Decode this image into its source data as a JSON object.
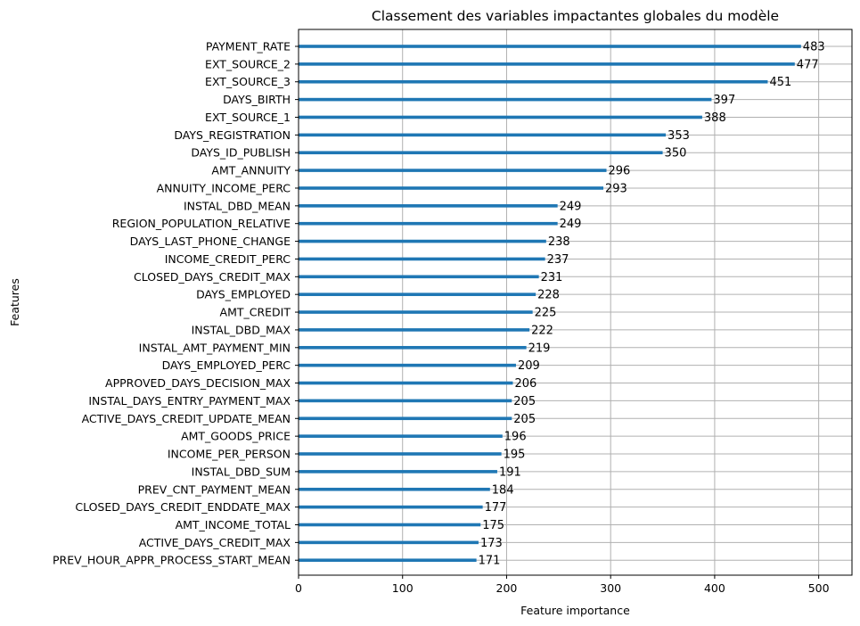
{
  "chart_data": {
    "type": "bar",
    "orientation": "horizontal",
    "title": "Classement des variables impactantes globales du modèle",
    "xlabel": "Feature importance",
    "ylabel": "Features",
    "xlim": [
      0,
      532
    ],
    "xticks": [
      0,
      100,
      200,
      300,
      400,
      500
    ],
    "grid": true,
    "bar_color": "#1f77b4",
    "categories": [
      "PAYMENT_RATE",
      "EXT_SOURCE_2",
      "EXT_SOURCE_3",
      "DAYS_BIRTH",
      "EXT_SOURCE_1",
      "DAYS_REGISTRATION",
      "DAYS_ID_PUBLISH",
      "AMT_ANNUITY",
      "ANNUITY_INCOME_PERC",
      "INSTAL_DBD_MEAN",
      "REGION_POPULATION_RELATIVE",
      "DAYS_LAST_PHONE_CHANGE",
      "INCOME_CREDIT_PERC",
      "CLOSED_DAYS_CREDIT_MAX",
      "DAYS_EMPLOYED",
      "AMT_CREDIT",
      "INSTAL_DBD_MAX",
      "INSTAL_AMT_PAYMENT_MIN",
      "DAYS_EMPLOYED_PERC",
      "APPROVED_DAYS_DECISION_MAX",
      "INSTAL_DAYS_ENTRY_PAYMENT_MAX",
      "ACTIVE_DAYS_CREDIT_UPDATE_MEAN",
      "AMT_GOODS_PRICE",
      "INCOME_PER_PERSON",
      "INSTAL_DBD_SUM",
      "PREV_CNT_PAYMENT_MEAN",
      "CLOSED_DAYS_CREDIT_ENDDATE_MAX",
      "AMT_INCOME_TOTAL",
      "ACTIVE_DAYS_CREDIT_MAX",
      "PREV_HOUR_APPR_PROCESS_START_MEAN"
    ],
    "values": [
      483,
      477,
      451,
      397,
      388,
      353,
      350,
      296,
      293,
      249,
      249,
      238,
      237,
      231,
      228,
      225,
      222,
      219,
      209,
      206,
      205,
      205,
      196,
      195,
      191,
      184,
      177,
      175,
      173,
      171
    ]
  }
}
